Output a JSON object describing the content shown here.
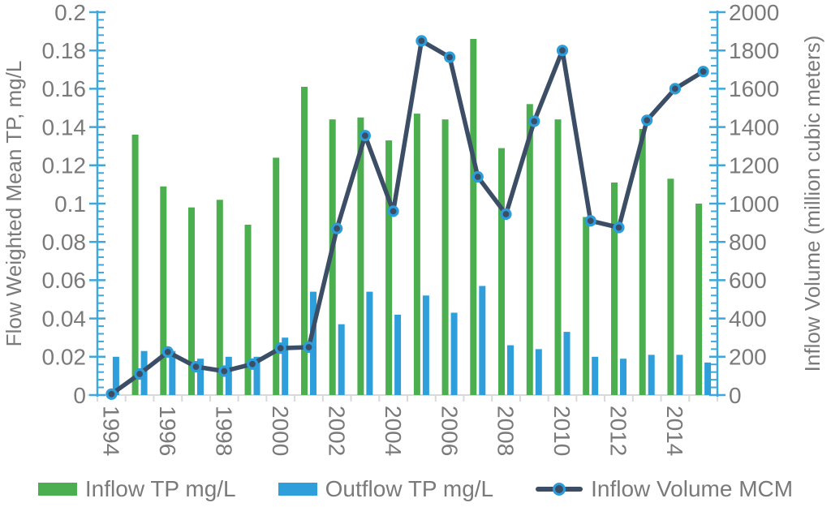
{
  "chart_data": {
    "type": "combo-bar-line",
    "title": "",
    "x": [
      1994,
      1995,
      1996,
      1997,
      1998,
      1999,
      2000,
      2001,
      2002,
      2003,
      2004,
      2005,
      2006,
      2007,
      2008,
      2009,
      2010,
      2011,
      2012,
      2013,
      2014,
      2015
    ],
    "x_tick_labels": [
      "1994",
      "1996",
      "1998",
      "2000",
      "2002",
      "2004",
      "2006",
      "2008",
      "2010",
      "2012",
      "2014"
    ],
    "left_axis": {
      "title": "Flow Weighted Mean TP, mg/L",
      "min": 0,
      "max": 0.2,
      "major_step": 0.02,
      "minor_step": 0.004,
      "tick_labels": [
        "0",
        "0.02",
        "0.04",
        "0.06",
        "0.08",
        "0.1",
        "0.12",
        "0.14",
        "0.16",
        "0.18",
        "0.2"
      ]
    },
    "right_axis": {
      "title": "Inflow Volume (million cubic meters)",
      "min": 0,
      "max": 2000,
      "major_step": 200,
      "minor_step": 40,
      "tick_labels": [
        "0",
        "200",
        "400",
        "600",
        "800",
        "1000",
        "1200",
        "1400",
        "1600",
        "1800",
        "2000"
      ]
    },
    "series": [
      {
        "name": "Inflow TP mg/L",
        "type": "bar",
        "axis": "left",
        "color": "#4caf4f",
        "values": [
          null,
          0.136,
          0.109,
          0.098,
          0.102,
          0.089,
          0.124,
          0.161,
          0.144,
          0.145,
          0.133,
          0.147,
          0.144,
          0.186,
          0.129,
          0.152,
          0.144,
          0.093,
          0.111,
          0.139,
          0.113,
          0.1
        ]
      },
      {
        "name": "Outflow TP mg/L",
        "type": "bar",
        "axis": "left",
        "color": "#2e9fda",
        "values": [
          0.02,
          0.023,
          0.023,
          0.019,
          0.02,
          0.02,
          0.03,
          0.054,
          0.037,
          0.054,
          0.042,
          0.052,
          0.043,
          0.057,
          0.026,
          0.024,
          0.033,
          0.02,
          0.019,
          0.021,
          0.021,
          0.017
        ]
      },
      {
        "name": "Inflow Volume MCM",
        "type": "line",
        "axis": "right",
        "color": "#3c4e66",
        "marker_ring": "#2c9ddb",
        "values": [
          5,
          110,
          225,
          148,
          125,
          162,
          245,
          250,
          870,
          1355,
          960,
          1850,
          1765,
          1140,
          945,
          1430,
          1800,
          910,
          875,
          1435,
          1600,
          1690
        ]
      }
    ],
    "legend_position": "bottom",
    "gridlines": false
  },
  "colors": {
    "inflow_bar": "#4caf4f",
    "outflow_bar": "#2e9fda",
    "volume_line": "#3c4e66",
    "marker_ring": "#2c9ddb",
    "axis_blue": "#3ea8dc",
    "axis_gray": "#d9d9d9",
    "text_gray": "#7a7a7a",
    "background": "#ffffff"
  }
}
